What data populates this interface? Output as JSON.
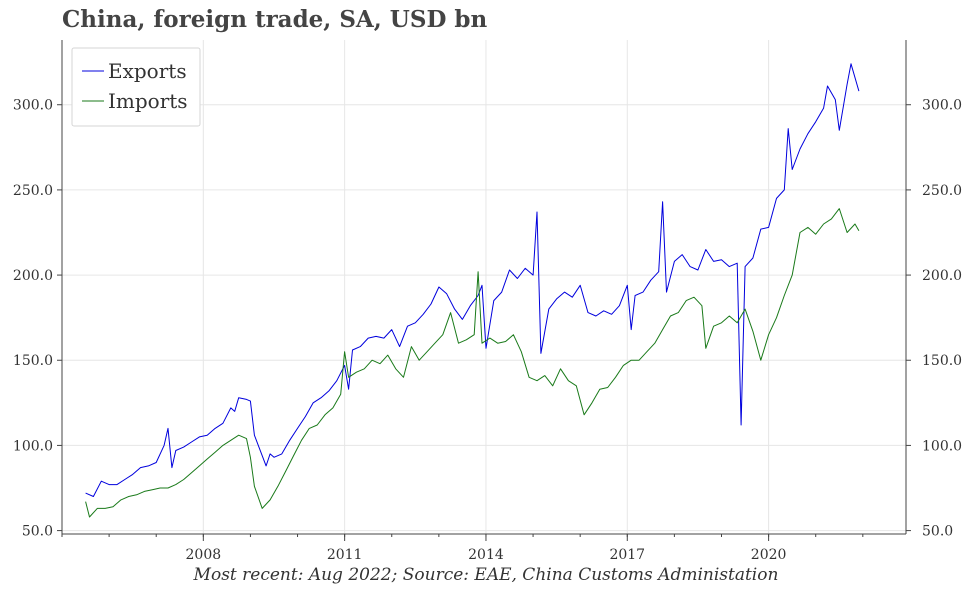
{
  "title": "China, foreign trade, SA, USD bn",
  "footer": "Most recent: Aug 2022; Source: EAE, China Customs Administation",
  "chart_data": {
    "type": "line",
    "title": "China, foreign trade, SA, USD bn",
    "xlabel": "",
    "ylabel": "",
    "grid": true,
    "legend_position": "top-left",
    "xlim": [
      "2005-01",
      "2022-12"
    ],
    "ylim": [
      48,
      338
    ],
    "x_ticks": [
      {
        "date": "2008-01",
        "label": "2008"
      },
      {
        "date": "2011-01",
        "label": "2011"
      },
      {
        "date": "2014-01",
        "label": "2014"
      },
      {
        "date": "2017-01",
        "label": "2017"
      },
      {
        "date": "2020-01",
        "label": "2020"
      }
    ],
    "y_ticks": [
      {
        "value": 50,
        "label": "50.0"
      },
      {
        "value": 100,
        "label": "100.0"
      },
      {
        "value": 150,
        "label": "150.0"
      },
      {
        "value": 200,
        "label": "200.0"
      },
      {
        "value": 250,
        "label": "250.0"
      },
      {
        "value": 300,
        "label": "300.0"
      }
    ],
    "series": [
      {
        "name": "Exports",
        "color": "#0000dd",
        "points": [
          [
            "2005-07",
            72
          ],
          [
            "2005-09",
            70
          ],
          [
            "2005-11",
            79
          ],
          [
            "2006-01",
            77
          ],
          [
            "2006-03",
            77
          ],
          [
            "2006-05",
            80
          ],
          [
            "2006-07",
            83
          ],
          [
            "2006-09",
            87
          ],
          [
            "2006-11",
            88
          ],
          [
            "2007-01",
            90
          ],
          [
            "2007-03",
            100
          ],
          [
            "2007-04",
            110
          ],
          [
            "2007-05",
            87
          ],
          [
            "2007-06",
            97
          ],
          [
            "2007-08",
            99
          ],
          [
            "2007-10",
            102
          ],
          [
            "2007-12",
            105
          ],
          [
            "2008-02",
            106
          ],
          [
            "2008-04",
            110
          ],
          [
            "2008-06",
            113
          ],
          [
            "2008-08",
            122
          ],
          [
            "2008-09",
            120
          ],
          [
            "2008-10",
            128
          ],
          [
            "2008-12",
            127
          ],
          [
            "2009-01",
            126
          ],
          [
            "2009-02",
            106
          ],
          [
            "2009-03",
            100
          ],
          [
            "2009-05",
            88
          ],
          [
            "2009-06",
            95
          ],
          [
            "2009-07",
            93
          ],
          [
            "2009-09",
            95
          ],
          [
            "2009-11",
            103
          ],
          [
            "2010-01",
            110
          ],
          [
            "2010-03",
            117
          ],
          [
            "2010-05",
            125
          ],
          [
            "2010-07",
            128
          ],
          [
            "2010-09",
            132
          ],
          [
            "2010-11",
            138
          ],
          [
            "2011-01",
            147
          ],
          [
            "2011-02",
            133
          ],
          [
            "2011-03",
            156
          ],
          [
            "2011-05",
            158
          ],
          [
            "2011-07",
            163
          ],
          [
            "2011-09",
            164
          ],
          [
            "2011-11",
            163
          ],
          [
            "2012-01",
            168
          ],
          [
            "2012-03",
            158
          ],
          [
            "2012-05",
            170
          ],
          [
            "2012-07",
            172
          ],
          [
            "2012-09",
            177
          ],
          [
            "2012-11",
            183
          ],
          [
            "2013-01",
            193
          ],
          [
            "2013-03",
            189
          ],
          [
            "2013-05",
            180
          ],
          [
            "2013-07",
            174
          ],
          [
            "2013-09",
            182
          ],
          [
            "2013-11",
            188
          ],
          [
            "2013-12",
            194
          ],
          [
            "2014-01",
            157
          ],
          [
            "2014-03",
            185
          ],
          [
            "2014-05",
            190
          ],
          [
            "2014-07",
            203
          ],
          [
            "2014-09",
            198
          ],
          [
            "2014-11",
            204
          ],
          [
            "2015-01",
            200
          ],
          [
            "2015-02",
            237
          ],
          [
            "2015-03",
            154
          ],
          [
            "2015-05",
            180
          ],
          [
            "2015-07",
            186
          ],
          [
            "2015-09",
            190
          ],
          [
            "2015-11",
            187
          ],
          [
            "2016-01",
            194
          ],
          [
            "2016-03",
            178
          ],
          [
            "2016-05",
            176
          ],
          [
            "2016-07",
            179
          ],
          [
            "2016-09",
            177
          ],
          [
            "2016-11",
            182
          ],
          [
            "2017-01",
            194
          ],
          [
            "2017-02",
            168
          ],
          [
            "2017-03",
            188
          ],
          [
            "2017-05",
            190
          ],
          [
            "2017-07",
            197
          ],
          [
            "2017-09",
            202
          ],
          [
            "2017-10",
            243
          ],
          [
            "2017-11",
            190
          ],
          [
            "2018-01",
            208
          ],
          [
            "2018-03",
            212
          ],
          [
            "2018-05",
            205
          ],
          [
            "2018-07",
            203
          ],
          [
            "2018-09",
            215
          ],
          [
            "2018-11",
            208
          ],
          [
            "2019-01",
            209
          ],
          [
            "2019-03",
            205
          ],
          [
            "2019-05",
            207
          ],
          [
            "2019-06",
            112
          ],
          [
            "2019-07",
            205
          ],
          [
            "2019-09",
            210
          ],
          [
            "2019-11",
            227
          ],
          [
            "2020-01",
            228
          ],
          [
            "2020-03",
            245
          ],
          [
            "2020-05",
            250
          ],
          [
            "2020-06",
            286
          ],
          [
            "2020-07",
            262
          ],
          [
            "2020-09",
            274
          ],
          [
            "2020-11",
            283
          ],
          [
            "2021-01",
            290
          ],
          [
            "2021-03",
            298
          ],
          [
            "2021-04",
            311
          ],
          [
            "2021-06",
            303
          ],
          [
            "2021-07",
            285
          ],
          [
            "2021-09",
            312
          ],
          [
            "2021-10",
            324
          ],
          [
            "2021-12",
            308
          ]
        ]
      },
      {
        "name": "Imports",
        "color": "#1a7a1a",
        "points": [
          [
            "2005-07",
            67
          ],
          [
            "2005-08",
            58
          ],
          [
            "2005-10",
            63
          ],
          [
            "2005-12",
            63
          ],
          [
            "2006-02",
            64
          ],
          [
            "2006-04",
            68
          ],
          [
            "2006-06",
            70
          ],
          [
            "2006-08",
            71
          ],
          [
            "2006-10",
            73
          ],
          [
            "2006-12",
            74
          ],
          [
            "2007-02",
            75
          ],
          [
            "2007-04",
            75
          ],
          [
            "2007-06",
            77
          ],
          [
            "2007-08",
            80
          ],
          [
            "2007-10",
            84
          ],
          [
            "2007-12",
            88
          ],
          [
            "2008-02",
            92
          ],
          [
            "2008-04",
            96
          ],
          [
            "2008-06",
            100
          ],
          [
            "2008-08",
            103
          ],
          [
            "2008-10",
            106
          ],
          [
            "2008-12",
            104
          ],
          [
            "2009-01",
            93
          ],
          [
            "2009-02",
            76
          ],
          [
            "2009-04",
            63
          ],
          [
            "2009-06",
            68
          ],
          [
            "2009-08",
            76
          ],
          [
            "2009-10",
            85
          ],
          [
            "2009-12",
            94
          ],
          [
            "2010-02",
            103
          ],
          [
            "2010-04",
            110
          ],
          [
            "2010-06",
            112
          ],
          [
            "2010-08",
            118
          ],
          [
            "2010-10",
            122
          ],
          [
            "2010-12",
            130
          ],
          [
            "2011-01",
            155
          ],
          [
            "2011-02",
            140
          ],
          [
            "2011-04",
            143
          ],
          [
            "2011-06",
            145
          ],
          [
            "2011-08",
            150
          ],
          [
            "2011-10",
            148
          ],
          [
            "2011-12",
            153
          ],
          [
            "2012-02",
            145
          ],
          [
            "2012-04",
            140
          ],
          [
            "2012-06",
            158
          ],
          [
            "2012-08",
            150
          ],
          [
            "2012-10",
            155
          ],
          [
            "2012-12",
            160
          ],
          [
            "2013-02",
            165
          ],
          [
            "2013-04",
            178
          ],
          [
            "2013-06",
            160
          ],
          [
            "2013-08",
            162
          ],
          [
            "2013-10",
            165
          ],
          [
            "2013-11",
            202
          ],
          [
            "2013-12",
            160
          ],
          [
            "2014-02",
            163
          ],
          [
            "2014-04",
            160
          ],
          [
            "2014-06",
            161
          ],
          [
            "2014-08",
            165
          ],
          [
            "2014-10",
            155
          ],
          [
            "2014-12",
            140
          ],
          [
            "2015-02",
            138
          ],
          [
            "2015-04",
            141
          ],
          [
            "2015-06",
            135
          ],
          [
            "2015-08",
            145
          ],
          [
            "2015-10",
            138
          ],
          [
            "2015-12",
            135
          ],
          [
            "2016-02",
            118
          ],
          [
            "2016-04",
            125
          ],
          [
            "2016-06",
            133
          ],
          [
            "2016-08",
            134
          ],
          [
            "2016-10",
            140
          ],
          [
            "2016-12",
            147
          ],
          [
            "2017-02",
            150
          ],
          [
            "2017-04",
            150
          ],
          [
            "2017-06",
            155
          ],
          [
            "2017-08",
            160
          ],
          [
            "2017-10",
            168
          ],
          [
            "2017-12",
            176
          ],
          [
            "2018-02",
            178
          ],
          [
            "2018-04",
            185
          ],
          [
            "2018-06",
            187
          ],
          [
            "2018-08",
            182
          ],
          [
            "2018-09",
            157
          ],
          [
            "2018-11",
            170
          ],
          [
            "2019-01",
            172
          ],
          [
            "2019-03",
            176
          ],
          [
            "2019-05",
            172
          ],
          [
            "2019-07",
            180
          ],
          [
            "2019-09",
            167
          ],
          [
            "2019-11",
            150
          ],
          [
            "2020-01",
            165
          ],
          [
            "2020-03",
            175
          ],
          [
            "2020-05",
            188
          ],
          [
            "2020-07",
            200
          ],
          [
            "2020-09",
            225
          ],
          [
            "2020-11",
            228
          ],
          [
            "2021-01",
            224
          ],
          [
            "2021-03",
            230
          ],
          [
            "2021-05",
            233
          ],
          [
            "2021-07",
            239
          ],
          [
            "2021-09",
            225
          ],
          [
            "2021-11",
            230
          ],
          [
            "2021-12",
            226
          ]
        ]
      }
    ]
  }
}
